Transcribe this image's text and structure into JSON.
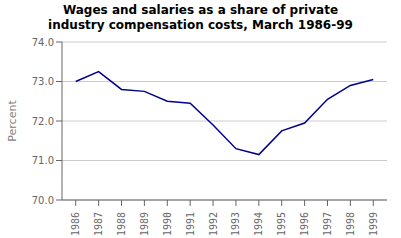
{
  "chart_data": {
    "type": "line",
    "title": "Wages and salaries as a share of private\nindustry compensation costs, March 1986-99",
    "ylabel": "Percent",
    "x": [
      1986,
      1987,
      1988,
      1989,
      1990,
      1991,
      1992,
      1993,
      1994,
      1995,
      1996,
      1997,
      1998,
      1999
    ],
    "values": [
      73.0,
      73.25,
      72.8,
      72.75,
      72.5,
      72.45,
      71.9,
      71.3,
      71.15,
      71.75,
      71.95,
      72.55,
      72.9,
      73.05
    ],
    "color": "#00008B",
    "xlim": [
      1985.4,
      1999.6
    ],
    "xticks": [
      1986,
      1987,
      1988,
      1989,
      1990,
      1991,
      1992,
      1993,
      1994,
      1995,
      1996,
      1997,
      1998,
      1999
    ],
    "ylim": [
      70.0,
      74.0
    ],
    "yticks": [
      {
        "value": 70.0,
        "label": "70.0"
      },
      {
        "value": 71.0,
        "label": "71.0"
      },
      {
        "value": 72.0,
        "label": "72.0"
      },
      {
        "value": 73.0,
        "label": "73.0"
      },
      {
        "value": 74.0,
        "label": "74.0"
      }
    ],
    "grid": true
  }
}
